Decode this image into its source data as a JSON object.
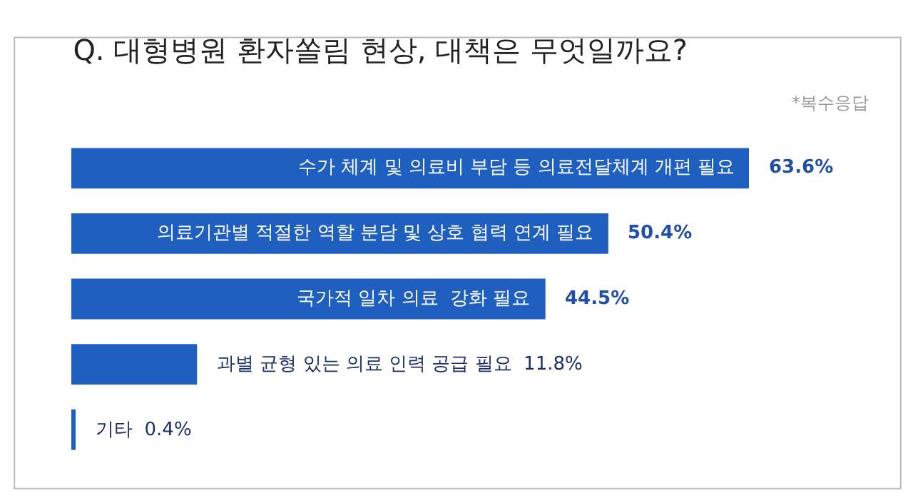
{
  "chart_data": {
    "type": "bar",
    "orientation": "horizontal",
    "title": "Q. 대형병원 환자쏠림 현상, 대책은 무엇일까요?",
    "annotations": [
      "*복수응답"
    ],
    "categories": [
      "수가 체계 및 의료비 부담 등 의료전달체계 개편 필요",
      "의료기관별 적절한 역할 분담 및 상호 협력 연계 필요",
      "국가적 일차 의료  강화 필요",
      "과별 균형 있는 의료 인력 공급 필요",
      "기타"
    ],
    "values": [
      63.6,
      50.4,
      44.5,
      11.8,
      0.4
    ],
    "value_labels": [
      "63.6%",
      "50.4%",
      "44.5%",
      "11.8%",
      "0.4%"
    ],
    "color": "#1f5fbf"
  }
}
